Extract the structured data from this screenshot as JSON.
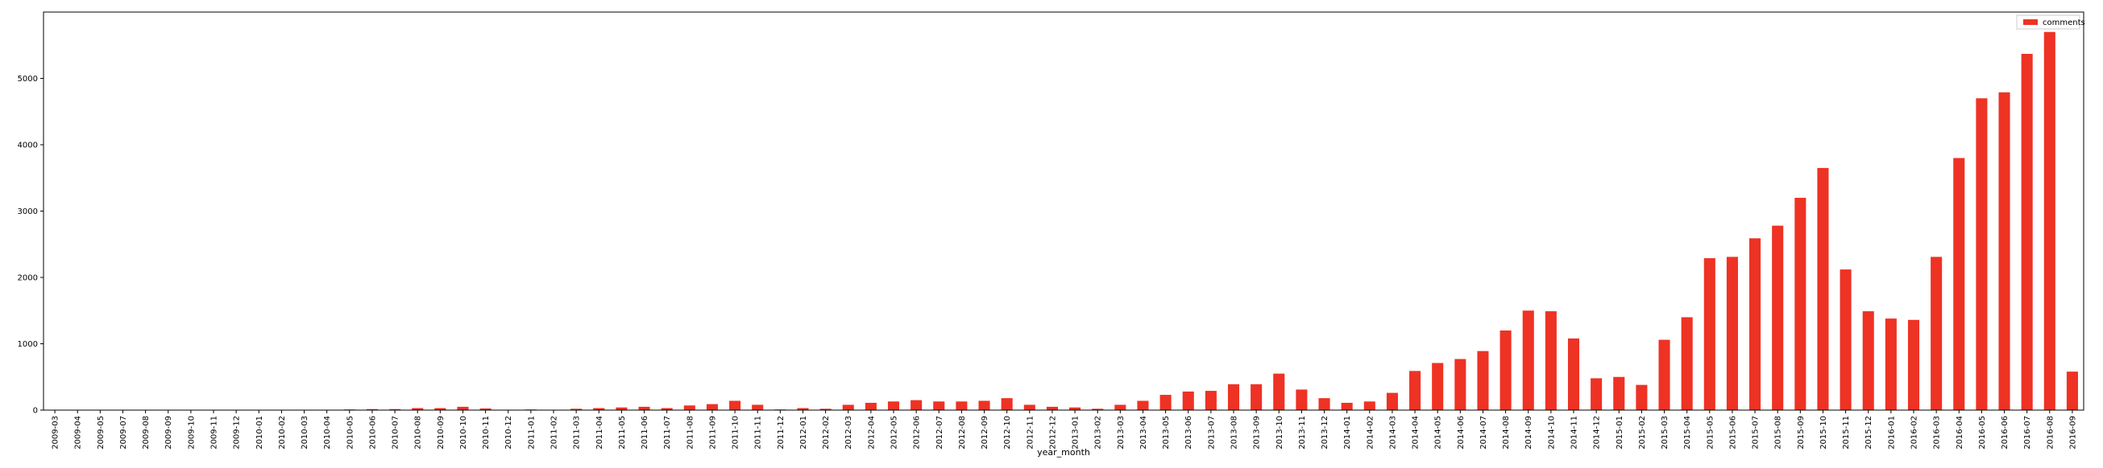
{
  "chart_data": {
    "type": "bar",
    "xlabel": "year_month",
    "ylabel": "",
    "ylim": [
      0,
      6000
    ],
    "yticks": [
      0,
      1000,
      2000,
      3000,
      4000,
      5000
    ],
    "grid": false,
    "legend": {
      "position": "top-right"
    },
    "categories": [
      "2009-03",
      "2009-04",
      "2009-05",
      "2009-07",
      "2009-08",
      "2009-09",
      "2009-10",
      "2009-11",
      "2009-12",
      "2010-01",
      "2010-02",
      "2010-03",
      "2010-04",
      "2010-05",
      "2010-06",
      "2010-07",
      "2010-08",
      "2010-09",
      "2010-10",
      "2010-11",
      "2010-12",
      "2011-01",
      "2011-02",
      "2011-03",
      "2011-04",
      "2011-05",
      "2011-06",
      "2011-07",
      "2011-08",
      "2011-09",
      "2011-10",
      "2011-11",
      "2011-12",
      "2012-01",
      "2012-02",
      "2012-03",
      "2012-04",
      "2012-05",
      "2012-06",
      "2012-07",
      "2012-08",
      "2012-09",
      "2012-10",
      "2012-11",
      "2012-12",
      "2013-01",
      "2013-02",
      "2013-03",
      "2013-04",
      "2013-05",
      "2013-06",
      "2013-07",
      "2013-08",
      "2013-09",
      "2013-10",
      "2013-11",
      "2013-12",
      "2014-01",
      "2014-02",
      "2014-03",
      "2014-04",
      "2014-05",
      "2014-06",
      "2014-07",
      "2014-08",
      "2014-09",
      "2014-10",
      "2014-11",
      "2014-12",
      "2015-01",
      "2015-02",
      "2015-03",
      "2015-04",
      "2015-05",
      "2015-06",
      "2015-07",
      "2015-08",
      "2015-09",
      "2015-10",
      "2015-11",
      "2015-12",
      "2016-01",
      "2016-02",
      "2016-03",
      "2016-04",
      "2016-05",
      "2016-06",
      "2016-07",
      "2016-08",
      "2016-09"
    ],
    "series": [
      {
        "name": "comments",
        "color": "#ee3224",
        "values": [
          0,
          0,
          0,
          0,
          0,
          0,
          0,
          0,
          0,
          0,
          0,
          0,
          0,
          10,
          15,
          15,
          30,
          30,
          50,
          25,
          0,
          10,
          0,
          20,
          30,
          40,
          50,
          30,
          70,
          90,
          140,
          80,
          10,
          30,
          20,
          80,
          110,
          130,
          150,
          130,
          130,
          140,
          180,
          80,
          50,
          40,
          20,
          80,
          140,
          230,
          280,
          290,
          390,
          390,
          550,
          310,
          180,
          110,
          130,
          260,
          590,
          710,
          770,
          890,
          1200,
          1500,
          1490,
          1080,
          480,
          500,
          380,
          1060,
          1400,
          2290,
          2310,
          2590,
          2780,
          3200,
          3650,
          2120,
          1490,
          1380,
          1360,
          2310,
          3800,
          4700,
          4790,
          5370,
          5700,
          580
        ]
      }
    ]
  }
}
